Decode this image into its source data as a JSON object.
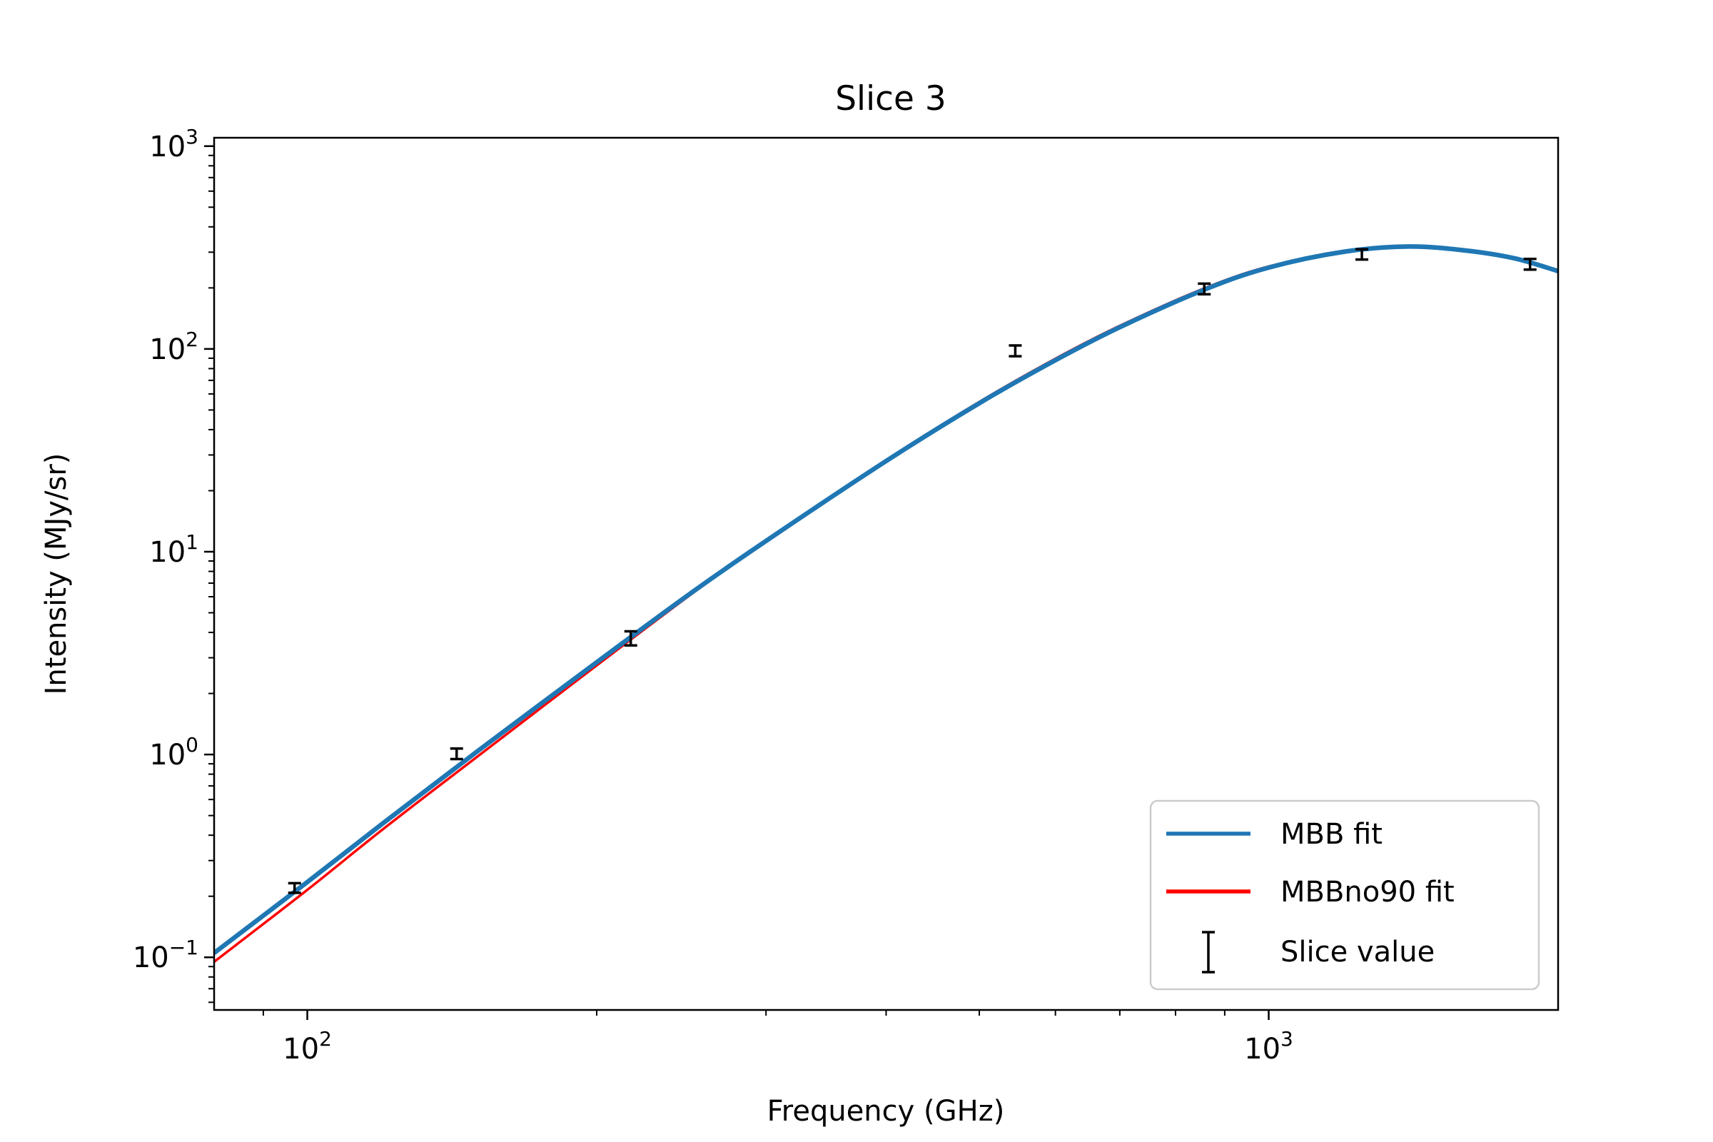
{
  "chart_data": {
    "type": "line",
    "title": "Slice 3",
    "xlabel": "Frequency (GHz)",
    "ylabel": "Intensity (MJy/sr)",
    "xscale": "log",
    "yscale": "log",
    "xlim": [
      80,
      2000
    ],
    "ylim": [
      0.055,
      1100
    ],
    "grid": false,
    "legend_position": "lower-right",
    "x_ticks": [
      {
        "value": 100,
        "base": "10",
        "exp": "2"
      },
      {
        "value": 1000,
        "base": "10",
        "exp": "3"
      }
    ],
    "y_ticks": [
      {
        "value": 0.1,
        "base": "10",
        "exp": "−1"
      },
      {
        "value": 1,
        "base": "10",
        "exp": "0"
      },
      {
        "value": 10,
        "base": "10",
        "exp": "1"
      },
      {
        "value": 100,
        "base": "10",
        "exp": "2"
      },
      {
        "value": 1000,
        "base": "10",
        "exp": "3"
      }
    ],
    "series": [
      {
        "name": "MBB fit",
        "kind": "line",
        "color": "#1f77b4",
        "x": [
          80,
          100,
          120,
          150,
          200,
          250,
          300,
          400,
          500,
          600,
          700,
          857,
          1000,
          1200,
          1400,
          1600,
          1800,
          2000
        ],
        "y": [
          0.105,
          0.235,
          0.46,
          1.03,
          2.85,
          6.2,
          11.3,
          28.0,
          54.0,
          88.0,
          128.0,
          196.0,
          252.0,
          302.0,
          320.0,
          306.0,
          280.0,
          242.0
        ]
      },
      {
        "name": "MBBno90 fit",
        "kind": "line",
        "color": "#ff0000",
        "x": [
          80,
          100,
          120,
          150,
          200,
          250,
          300,
          400,
          500,
          600,
          700,
          857,
          1000,
          1200,
          1400,
          1600,
          1800,
          2000
        ],
        "y": [
          0.095,
          0.215,
          0.43,
          0.97,
          2.75,
          6.1,
          11.3,
          28.3,
          54.8,
          89.5,
          130.0,
          199.0,
          255.0,
          304.0,
          320.0,
          305.0,
          278.0,
          240.0
        ]
      },
      {
        "name": "Slice value",
        "kind": "errorbar",
        "color": "#000000",
        "x": [
          97,
          143,
          217,
          545,
          857,
          1250,
          1870
        ],
        "y": [
          0.22,
          1.01,
          3.75,
          98.0,
          198.0,
          293.0,
          262.0
        ],
        "yerr": [
          0.012,
          0.06,
          0.3,
          6.0,
          12.0,
          17.0,
          16.0
        ]
      }
    ]
  }
}
